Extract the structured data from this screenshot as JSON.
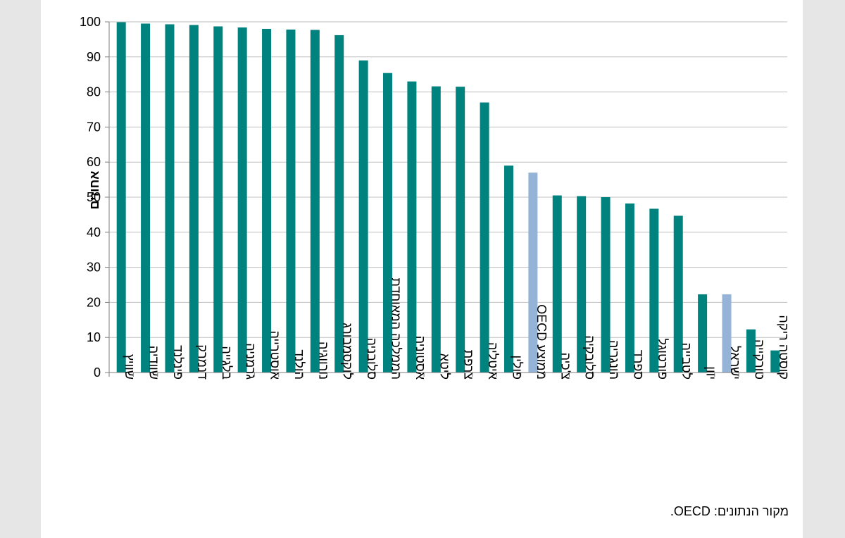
{
  "chart_data": {
    "type": "bar",
    "ylabel": "אחוזים",
    "ylim": [
      0,
      100
    ],
    "yticks": [
      0,
      10,
      20,
      30,
      40,
      50,
      60,
      70,
      80,
      90,
      100
    ],
    "grid": true,
    "categories": [
      "שוויץ",
      "שוודיה",
      "פינלנד",
      "דנמרק",
      "בלגייה",
      "גרמניה",
      "אוסטרייה",
      "הולנד",
      "נורווגיה",
      "לוקסמבורג",
      "סלובניה",
      "הממלכה המאוחדת",
      "אסטוניה",
      "ליטא",
      "צרפת",
      "איטליה",
      "פולין",
      "ממוצע OECD",
      "צ'כיה",
      "סלובקיה",
      "הונגריה",
      "ספרד",
      "פורטוגל",
      "לטבייה",
      "יוון",
      "ישראל",
      "טורקייה",
      "קוסטה ריקה"
    ],
    "values": [
      99.9,
      99.5,
      99.3,
      99.1,
      98.7,
      98.4,
      98.0,
      97.8,
      97.7,
      96.2,
      89.0,
      85.4,
      83.0,
      81.6,
      81.5,
      77.0,
      59.0,
      57.0,
      50.5,
      50.3,
      50.0,
      48.2,
      46.7,
      44.7,
      22.3,
      22.3,
      12.3,
      6.3
    ],
    "highlighted": [
      "ממוצע OECD",
      "ישראל"
    ],
    "colors": {
      "bar": "#00827F",
      "highlight": "#95B3D7",
      "grid": "#BFBFBF",
      "axis": "#7F7F7F"
    }
  },
  "source_note": "מקור הנתונים: OECD."
}
